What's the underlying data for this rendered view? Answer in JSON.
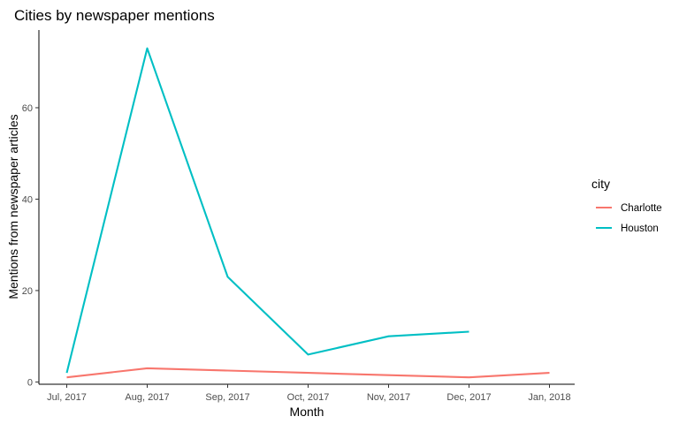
{
  "chart_data": {
    "type": "line",
    "title": "Cities by newspaper mentions",
    "xlabel": "Month",
    "ylabel": "Mentions from newspaper articles",
    "categories": [
      "Jul, 2017",
      "Aug, 2017",
      "Sep, 2017",
      "Oct, 2017",
      "Nov, 2017",
      "Dec, 2017",
      "Jan, 2018"
    ],
    "ylim": [
      -0.5,
      77
    ],
    "yticks": [
      0,
      20,
      40,
      60
    ],
    "grid": false,
    "legend": {
      "title": "city",
      "position": "right"
    },
    "series": [
      {
        "name": "Charlotte",
        "color": "#F8766D",
        "values": [
          1,
          3,
          2.5,
          2,
          1.5,
          1,
          2
        ]
      },
      {
        "name": "Houston",
        "color": "#00BFC4",
        "values": [
          2,
          73,
          23,
          6,
          10,
          11,
          null
        ]
      }
    ]
  }
}
